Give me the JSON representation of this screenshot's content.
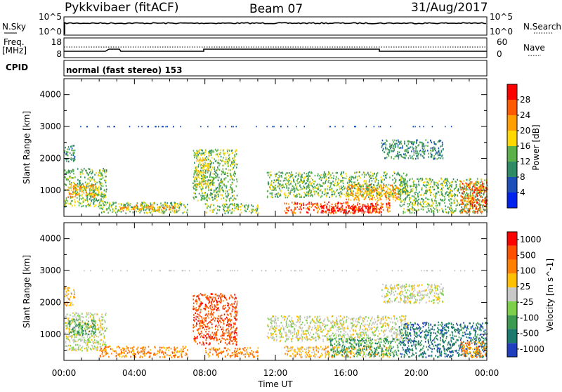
{
  "header": {
    "station": "Pykkvibaer (fitACF)",
    "beam": "Beam 07",
    "date": "31/Aug/2017"
  },
  "top_panels": {
    "nsky_label": "N.Sky",
    "nsky_ticks": [
      "10^5",
      "10^0"
    ],
    "nsearch_label": "N.Search",
    "nsearch_ticks": [
      "10^5",
      "10^0"
    ],
    "freq_label": "Freq.",
    "freq_unit": "[MHz]",
    "freq_ticks": [
      "18",
      "8"
    ],
    "nave_label": "Nave",
    "nave_ticks": [
      "60",
      "0"
    ],
    "cpid_label": "CPID",
    "cpid_text": "normal (fast stereo) 153"
  },
  "chart_data": [
    {
      "type": "heatmap",
      "title": "",
      "ylabel": "Slant Range [km]",
      "xlabel": "",
      "colorbar_label": "Power [dB]",
      "colorbar_ticks": [
        "28",
        "24",
        "20",
        "16",
        "12",
        "8",
        "4"
      ],
      "colorbar_colors": [
        "#0022ee",
        "#1c4fb8",
        "#2f8a66",
        "#5bb04a",
        "#ffd800",
        "#ffa000",
        "#ff5a00",
        "#ff0000"
      ],
      "ylim": [
        180,
        4500
      ],
      "yticks": [
        "1000",
        "2000",
        "3000",
        "4000"
      ],
      "xlim_hours": [
        0,
        24
      ],
      "xticks": [
        "00:00",
        "04:00",
        "08:00",
        "12:00",
        "16:00",
        "20:00",
        "00:00"
      ],
      "scatter_regions": [
        {
          "t0": 0.0,
          "t1": 2.4,
          "r0": 500,
          "r1": 1700,
          "level": 3
        },
        {
          "t0": 0.2,
          "t1": 1.8,
          "r0": 800,
          "r1": 1200,
          "level": 5
        },
        {
          "t0": 0.0,
          "t1": 0.6,
          "r0": 1900,
          "r1": 2500,
          "level": 2
        },
        {
          "t0": 2.0,
          "t1": 7.0,
          "r0": 300,
          "r1": 650,
          "level": 3
        },
        {
          "t0": 3.0,
          "t1": 6.5,
          "r0": 380,
          "r1": 560,
          "level": 5
        },
        {
          "t0": 7.3,
          "t1": 9.8,
          "r0": 700,
          "r1": 2300,
          "level": 3
        },
        {
          "t0": 7.4,
          "t1": 8.2,
          "r0": 1100,
          "r1": 2000,
          "level": 4
        },
        {
          "t0": 8.0,
          "t1": 11.0,
          "r0": 300,
          "r1": 600,
          "level": 3
        },
        {
          "t0": 11.5,
          "t1": 19.5,
          "r0": 800,
          "r1": 1600,
          "level": 3
        },
        {
          "t0": 12.5,
          "t1": 18.5,
          "r0": 300,
          "r1": 650,
          "level": 6
        },
        {
          "t0": 14.5,
          "t1": 18.0,
          "r0": 320,
          "r1": 550,
          "level": 8
        },
        {
          "t0": 16.0,
          "t1": 19.0,
          "r0": 700,
          "r1": 1200,
          "level": 5
        },
        {
          "t0": 18.0,
          "t1": 21.5,
          "r0": 2000,
          "r1": 2600,
          "level": 2
        },
        {
          "t0": 19.0,
          "t1": 24.0,
          "r0": 300,
          "r1": 1400,
          "level": 3
        },
        {
          "t0": 22.5,
          "t1": 24.0,
          "r0": 300,
          "r1": 1300,
          "level": 6
        }
      ]
    },
    {
      "type": "heatmap",
      "title": "",
      "ylabel": "Slant Range [km]",
      "xlabel": "Time UT",
      "colorbar_label": "Velocity [m s^-1]",
      "colorbar_ticks": [
        "1000",
        "500",
        "100",
        "25",
        "-25",
        "-100",
        "-500",
        "-1000"
      ],
      "colorbar_colors": [
        "#1f3fbf",
        "#1b7a6e",
        "#3c9a50",
        "#7ed04a",
        "#c8c8c8",
        "#ffc000",
        "#ff8000",
        "#ff5000",
        "#ff0000"
      ],
      "ylim": [
        180,
        4500
      ],
      "yticks": [
        "1000",
        "2000",
        "3000",
        "4000"
      ],
      "xlim_hours": [
        0,
        24
      ],
      "xticks": [
        "00:00",
        "04:00",
        "08:00",
        "12:00",
        "16:00",
        "20:00",
        "00:00"
      ],
      "scatter_regions": [
        {
          "t0": 0.0,
          "t1": 2.4,
          "r0": 500,
          "r1": 1700,
          "level": 4
        },
        {
          "t0": 0.2,
          "t1": 1.8,
          "r0": 1000,
          "r1": 1500,
          "level": 2
        },
        {
          "t0": 0.0,
          "t1": 0.6,
          "r0": 1900,
          "r1": 2500,
          "level": 5
        },
        {
          "t0": 2.0,
          "t1": 7.0,
          "r0": 300,
          "r1": 650,
          "level": 6
        },
        {
          "t0": 7.3,
          "t1": 9.8,
          "r0": 700,
          "r1": 2300,
          "level": 7
        },
        {
          "t0": 8.0,
          "t1": 11.0,
          "r0": 300,
          "r1": 600,
          "level": 6
        },
        {
          "t0": 11.5,
          "t1": 19.5,
          "r0": 800,
          "r1": 1600,
          "level": 4
        },
        {
          "t0": 12.5,
          "t1": 18.5,
          "r0": 300,
          "r1": 650,
          "level": 5
        },
        {
          "t0": 15.0,
          "t1": 19.0,
          "r0": 320,
          "r1": 900,
          "level": 2
        },
        {
          "t0": 18.0,
          "t1": 21.5,
          "r0": 2000,
          "r1": 2600,
          "level": 4
        },
        {
          "t0": 19.0,
          "t1": 24.0,
          "r0": 300,
          "r1": 1400,
          "level": 1
        },
        {
          "t0": 22.5,
          "t1": 24.0,
          "r0": 300,
          "r1": 800,
          "level": 6
        }
      ]
    }
  ]
}
